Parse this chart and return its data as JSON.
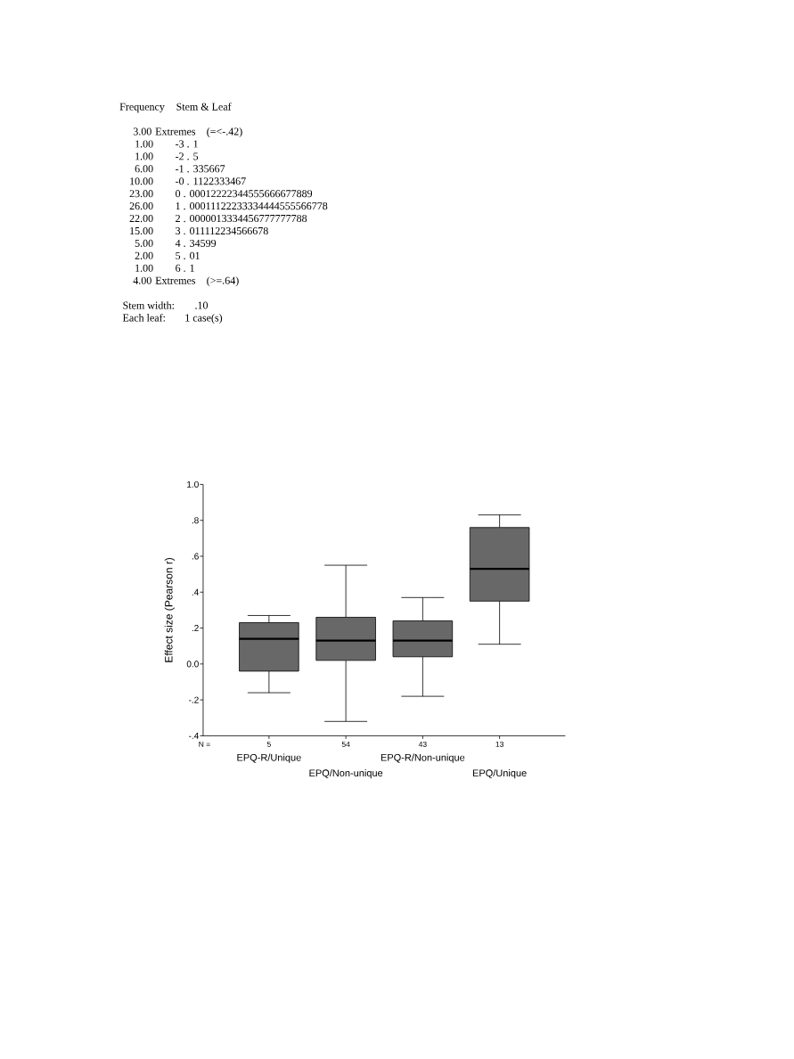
{
  "chart_data": [
    {
      "type": "other",
      "annotations": [
        "Frequency",
        "Stem & Leaf",
        "3.00",
        "Extremes",
        "(=<-.42)",
        "1.00",
        "-3 . 1",
        "1.00",
        "-2 . 5",
        "6.00",
        "-1 . 335667",
        "10.00",
        "-0 . 1122333467",
        "23.00",
        "0 . 00012222344555666677889",
        "26.00",
        "1 . 00011122233334444555566778",
        "22.00",
        "2 . 0000013334456777777788",
        "15.00",
        "3 . 011112234566678",
        "5.00",
        "4 . 34599",
        "2.00",
        "5 . 01",
        "1.00",
        "6 . 1",
        "4.00",
        "Extremes",
        "(>=.64)",
        "Stem width:",
        ".10",
        "Each leaf:",
        "1 case(s)"
      ]
    },
    {
      "type": "box",
      "ylabel": "Effect size (Pearson r)",
      "categories": [
        "EPQ-R/Unique",
        "EPQ/Non-unique",
        "EPQ-R/Non-unique",
        "EPQ/Unique"
      ],
      "color": "#686868",
      "boxes": [
        {
          "low": -0.16,
          "q1": -0.04,
          "median": 0.14,
          "q3": 0.23,
          "high": 0.27
        },
        {
          "low": -0.32,
          "q1": 0.02,
          "median": 0.13,
          "q3": 0.26,
          "high": 0.55
        },
        {
          "low": -0.18,
          "q1": 0.04,
          "median": 0.13,
          "q3": 0.24,
          "high": 0.37
        },
        {
          "low": 0.11,
          "q1": 0.35,
          "median": 0.53,
          "q3": 0.76,
          "high": 0.83
        }
      ],
      "ylim": [
        -0.4,
        1.0
      ],
      "yticks": [
        {
          "value": -0.4,
          "label": "-.4"
        },
        {
          "value": -0.2,
          "label": "-.2"
        },
        {
          "value": 0,
          "label": "0.0"
        },
        {
          "value": 0.2,
          "label": ".2"
        },
        {
          "value": 0.4,
          "label": ".4"
        },
        {
          "value": 0.6,
          "label": ".6"
        },
        {
          "value": 0.8,
          "label": ".8"
        },
        {
          "value": 1.0,
          "label": "1.0"
        }
      ],
      "annotations": [
        "N =",
        "5",
        "54",
        "43",
        "13"
      ]
    }
  ]
}
